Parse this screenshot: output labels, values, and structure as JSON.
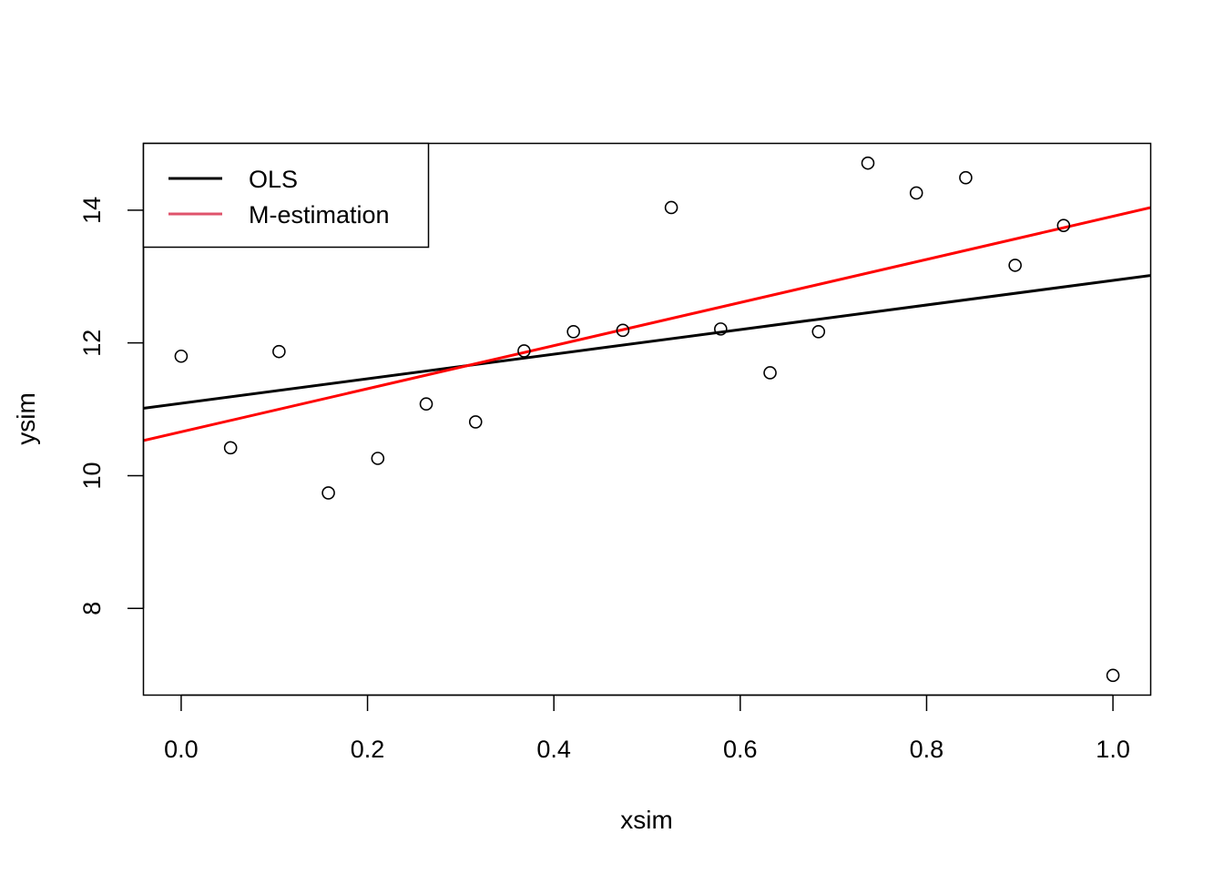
{
  "chart_data": {
    "type": "scatter",
    "title": "",
    "xlabel": "xsim",
    "ylabel": "ysim",
    "xlim": [
      -0.04,
      1.04
    ],
    "ylim": [
      6.7,
      15.0
    ],
    "xticks": [
      0.0,
      0.2,
      0.4,
      0.6,
      0.8,
      1.0
    ],
    "xtick_labels": [
      "0.0",
      "0.2",
      "0.4",
      "0.6",
      "0.8",
      "1.0"
    ],
    "yticks": [
      8,
      10,
      12,
      14
    ],
    "ytick_labels": [
      "8",
      "10",
      "12",
      "14"
    ],
    "grid": false,
    "legend_position": "top-left",
    "points": [
      {
        "x": 0.0,
        "y": 11.8
      },
      {
        "x": 0.053,
        "y": 10.42
      },
      {
        "x": 0.105,
        "y": 11.87
      },
      {
        "x": 0.158,
        "y": 9.74
      },
      {
        "x": 0.211,
        "y": 10.26
      },
      {
        "x": 0.263,
        "y": 11.08
      },
      {
        "x": 0.316,
        "y": 10.81
      },
      {
        "x": 0.368,
        "y": 11.88
      },
      {
        "x": 0.421,
        "y": 12.17
      },
      {
        "x": 0.474,
        "y": 12.19
      },
      {
        "x": 0.526,
        "y": 14.04
      },
      {
        "x": 0.579,
        "y": 12.21
      },
      {
        "x": 0.632,
        "y": 11.55
      },
      {
        "x": 0.684,
        "y": 12.17
      },
      {
        "x": 0.737,
        "y": 14.71
      },
      {
        "x": 0.789,
        "y": 14.26
      },
      {
        "x": 0.842,
        "y": 14.49
      },
      {
        "x": 0.895,
        "y": 13.17
      },
      {
        "x": 0.947,
        "y": 13.77
      },
      {
        "x": 1.0,
        "y": 6.99
      }
    ],
    "lines": [
      {
        "name": "OLS",
        "color": "#000000",
        "intercept": 11.09,
        "slope": 1.852
      },
      {
        "name": "M-estimation",
        "color": "#ff0000",
        "intercept": 10.66,
        "slope": 3.248
      }
    ],
    "legend": [
      {
        "label": "OLS",
        "color": "#000000"
      },
      {
        "label": "M-estimation",
        "color": "#df536b"
      }
    ]
  }
}
